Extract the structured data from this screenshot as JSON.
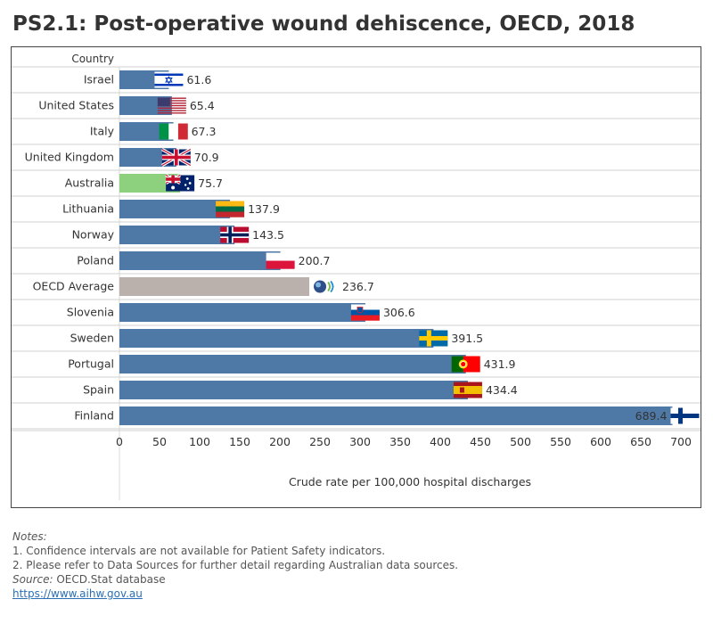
{
  "title": "PS2.1: Post-operative wound dehiscence, OECD, 2018",
  "chart_data": {
    "type": "bar",
    "orientation": "horizontal",
    "category_header": "Country",
    "xlabel": "Crude rate per 100,000 hospital discharges",
    "xlim": [
      0,
      700
    ],
    "xticks": [
      0,
      50,
      100,
      150,
      200,
      250,
      300,
      350,
      400,
      450,
      500,
      550,
      600,
      650,
      700
    ],
    "categories": [
      "Israel",
      "United States",
      "Italy",
      "United Kingdom",
      "Australia",
      "Lithuania",
      "Norway",
      "Poland",
      "OECD Average",
      "Slovenia",
      "Sweden",
      "Portugal",
      "Spain",
      "Finland"
    ],
    "values": [
      61.6,
      65.4,
      67.3,
      70.9,
      75.7,
      137.9,
      143.5,
      200.7,
      236.7,
      306.6,
      391.5,
      431.9,
      434.4,
      689.4
    ],
    "value_labels": [
      "61.6",
      "65.4",
      "67.3",
      "70.9",
      "75.7",
      "137.9",
      "143.5",
      "200.7",
      "236.7",
      "306.6",
      "391.5",
      "431.9",
      "434.4",
      "689.4"
    ],
    "bar_colors": [
      "#4e79a7",
      "#4e79a7",
      "#4e79a7",
      "#4e79a7",
      "#8dd17e",
      "#4e79a7",
      "#4e79a7",
      "#4e79a7",
      "#bab0ac",
      "#4e79a7",
      "#4e79a7",
      "#4e79a7",
      "#4e79a7",
      "#4e79a7"
    ],
    "flags": [
      "israel-flag-icon",
      "united-states-flag-icon",
      "italy-flag-icon",
      "united-kingdom-flag-icon",
      "australia-flag-icon",
      "lithuania-flag-icon",
      "norway-flag-icon",
      "poland-flag-icon",
      "oecd-logo-icon",
      "slovenia-flag-icon",
      "sweden-flag-icon",
      "portugal-flag-icon",
      "spain-flag-icon",
      "finland-flag-icon"
    ],
    "grid": false
  },
  "notes": {
    "heading": "Notes:",
    "items": [
      "1. Confidence intervals are not available for Patient Safety indicators.",
      "2. Please refer to Data Sources for further detail regarding Australian data sources."
    ],
    "source_label": "Source:",
    "source_text": " OECD.Stat database",
    "link": "https://www.aihw.gov.au"
  }
}
